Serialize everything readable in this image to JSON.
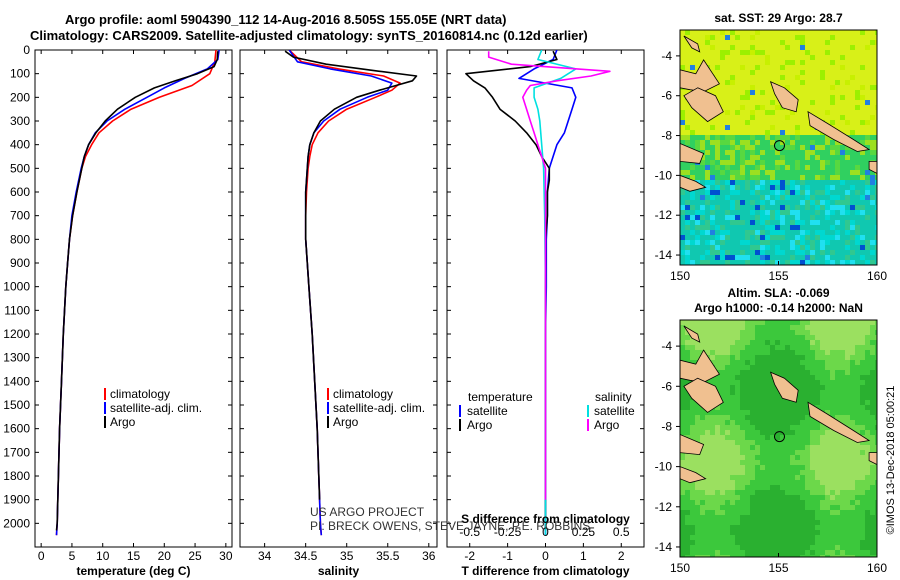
{
  "title": {
    "line1": "Argo profile: aoml 5904390_112 14-Aug-2016 8.505S 155.05E (NRT data)",
    "line2": "Climatology: CARS2009. Satellite-adjusted climatology: synTS_20160814.nc (0.12d earlier)"
  },
  "colors": {
    "climatology": "#ff0000",
    "satellite": "#0000ff",
    "argo": "#000000",
    "sat_salinity": "#00e0e0",
    "argo_salinity": "#ff00ff",
    "land": "#f0c090"
  },
  "chart_data": [
    {
      "type": "line",
      "id": "temperature",
      "xlabel": "temperature (deg C)",
      "xlim": [
        -1,
        31
      ],
      "ylim": [
        2100,
        0
      ],
      "xticks": [
        0,
        5,
        10,
        15,
        20,
        25,
        30
      ],
      "yticks": [
        0,
        100,
        200,
        300,
        400,
        500,
        600,
        700,
        800,
        900,
        1000,
        1100,
        1200,
        1300,
        1400,
        1500,
        1600,
        1700,
        1800,
        1900,
        2000
      ],
      "legend": [
        "climatology",
        "satellite-adj. clim.",
        "Argo"
      ],
      "series": [
        {
          "name": "climatology",
          "depth": [
            0,
            50,
            100,
            150,
            200,
            250,
            300,
            350,
            400,
            450,
            500,
            600,
            700,
            800,
            900,
            1000,
            1200,
            1400,
            1600,
            1800,
            2000,
            2050
          ],
          "value": [
            28.4,
            28.2,
            27.4,
            24.5,
            19.2,
            14.6,
            11.6,
            9.4,
            8.2,
            7.2,
            6.6,
            5.8,
            5.1,
            4.6,
            4.3,
            4.0,
            3.6,
            3.3,
            3.0,
            2.8,
            2.6,
            2.5
          ]
        },
        {
          "name": "satellite-adj. clim.",
          "depth": [
            0,
            40,
            80,
            120,
            160,
            200,
            250,
            300,
            350,
            400,
            450,
            500,
            600,
            700,
            800,
            900,
            1000,
            1200,
            1400,
            1600,
            1800,
            2000,
            2050
          ],
          "value": [
            28.9,
            28.7,
            27.0,
            23.3,
            20.0,
            17.2,
            13.6,
            10.7,
            8.8,
            7.7,
            7.0,
            6.5,
            5.7,
            5.0,
            4.6,
            4.3,
            4.0,
            3.6,
            3.3,
            3.0,
            2.8,
            2.6,
            2.5
          ]
        },
        {
          "name": "Argo",
          "depth": [
            5,
            40,
            70,
            100,
            130,
            160,
            200,
            250,
            300,
            350,
            400,
            450,
            500,
            600,
            700,
            800,
            900,
            1000,
            1200,
            1400,
            1600,
            1800,
            2000,
            2030
          ],
          "value": [
            28.7,
            28.6,
            28.1,
            25.4,
            21.8,
            18.4,
            15.3,
            12.4,
            10.4,
            8.9,
            7.7,
            7.0,
            6.6,
            5.8,
            5.1,
            4.6,
            4.3,
            4.0,
            3.6,
            3.3,
            3.0,
            2.8,
            2.6,
            2.5
          ]
        }
      ]
    },
    {
      "type": "line",
      "id": "salinity",
      "xlabel": "salinity",
      "xlim": [
        33.7,
        36.1
      ],
      "ylim": [
        2100,
        0
      ],
      "xticks": [
        34,
        34.5,
        35,
        35.5,
        36
      ],
      "legend": [
        "climatology",
        "satellite-adj. clim.",
        "Argo"
      ],
      "series": [
        {
          "name": "climatology",
          "depth": [
            0,
            50,
            80,
            110,
            140,
            170,
            200,
            250,
            300,
            350,
            400,
            450,
            500,
            600,
            700,
            800,
            900,
            1000,
            1200,
            1400,
            1600,
            1800,
            2000,
            2050
          ],
          "value": [
            34.3,
            34.45,
            34.9,
            35.45,
            35.65,
            35.55,
            35.35,
            35.0,
            34.78,
            34.65,
            34.58,
            34.55,
            34.53,
            34.51,
            34.5,
            34.5,
            34.52,
            34.54,
            34.58,
            34.61,
            34.64,
            34.66,
            34.68,
            34.69
          ]
        },
        {
          "name": "satellite-adj. clim.",
          "depth": [
            0,
            50,
            80,
            110,
            140,
            170,
            200,
            250,
            300,
            350,
            400,
            450,
            500,
            600,
            700,
            800,
            900,
            1000,
            1200,
            1400,
            1600,
            1800,
            2000,
            2050
          ],
          "value": [
            34.3,
            34.4,
            34.8,
            35.3,
            35.55,
            35.5,
            35.25,
            34.92,
            34.72,
            34.6,
            34.55,
            34.53,
            34.52,
            34.5,
            34.5,
            34.5,
            34.52,
            34.54,
            34.58,
            34.61,
            34.64,
            34.66,
            34.68,
            34.69
          ]
        },
        {
          "name": "Argo",
          "depth": [
            5,
            30,
            60,
            90,
            110,
            130,
            150,
            170,
            200,
            250,
            300,
            350,
            400,
            450,
            500,
            600,
            700,
            800,
            900,
            1000,
            1200,
            1400,
            1600,
            1800,
            1900
          ],
          "value": [
            34.25,
            34.35,
            34.75,
            35.4,
            35.85,
            35.8,
            35.6,
            35.4,
            35.12,
            34.85,
            34.68,
            34.6,
            34.55,
            34.53,
            34.52,
            34.5,
            34.5,
            34.5,
            34.52,
            34.54,
            34.58,
            34.61,
            34.64,
            34.66,
            34.67
          ]
        }
      ]
    },
    {
      "type": "line",
      "id": "difference",
      "xlabel": "T difference from climatology",
      "xlabel_top": "S difference from climatology",
      "xlim": [
        -2.6,
        2.6
      ],
      "ylim": [
        2100,
        0
      ],
      "xticks": [
        -2,
        -1,
        0,
        1,
        2
      ],
      "xticks_top_labels": [
        "-0.5",
        "-0.25",
        "0",
        "0.25",
        "0.5"
      ],
      "legend_left_title": "temperature",
      "legend_right_title": "salinity",
      "legend_left": [
        "satellite",
        "Argo"
      ],
      "legend_right": [
        "satellite",
        "Argo"
      ],
      "series": [
        {
          "name": "temperature satellite",
          "depth": [
            0,
            40,
            80,
            120,
            160,
            200,
            250,
            300,
            350,
            400,
            450,
            500,
            600,
            700,
            800,
            1000,
            1200,
            1500,
            2000,
            2050
          ],
          "value": [
            0.3,
            0.2,
            -0.3,
            -0.7,
            0.7,
            0.8,
            0.7,
            0.6,
            0.5,
            0.3,
            0.2,
            0.1,
            0.05,
            0.05,
            0.02,
            0.02,
            0.0,
            0.0,
            0.0,
            0.0
          ]
        },
        {
          "name": "temperature Argo",
          "depth": [
            5,
            40,
            70,
            100,
            130,
            160,
            200,
            250,
            300,
            350,
            400,
            450,
            500,
            550,
            600,
            700,
            800,
            1000,
            1200,
            1500,
            1800,
            2000,
            2030
          ],
          "value": [
            0.2,
            0.3,
            -0.4,
            -2.1,
            -1.9,
            -1.6,
            -1.4,
            -1.2,
            -0.8,
            -0.5,
            -0.25,
            -0.1,
            0.1,
            0.1,
            0.05,
            0.05,
            0.0,
            0.0,
            0.0,
            0.0,
            0.0,
            0.0,
            0.0
          ]
        },
        {
          "name": "salinity satellite",
          "depth": [
            0,
            40,
            80,
            120,
            160,
            200,
            250,
            300,
            400,
            500,
            700,
            1000,
            1500,
            2000,
            2050
          ],
          "value": [
            -0.1,
            -0.2,
            0.8,
            0.4,
            -0.3,
            -0.3,
            -0.2,
            -0.15,
            -0.1,
            -0.05,
            -0.02,
            0.0,
            0.0,
            0.0,
            0.0
          ]
        },
        {
          "name": "salinity Argo",
          "depth": [
            5,
            30,
            60,
            90,
            110,
            130,
            150,
            170,
            200,
            250,
            300,
            350,
            400,
            450,
            500,
            600,
            800,
            1000,
            1500,
            1900
          ],
          "value": [
            -1.5,
            -1.5,
            -0.9,
            1.7,
            1.2,
            0.3,
            -0.4,
            -0.5,
            -0.6,
            -0.5,
            -0.4,
            -0.3,
            -0.2,
            -0.1,
            0.0,
            0.0,
            0.0,
            0.0,
            0.0,
            0.0
          ]
        }
      ]
    },
    {
      "type": "heatmap",
      "id": "sst_map",
      "title": "sat. SST: 29 Argo: 28.7",
      "xlim": [
        150,
        160
      ],
      "ylim": [
        -14.5,
        -2.7
      ],
      "xticks": [
        150,
        155,
        160
      ],
      "yticks": [
        -4,
        -6,
        -8,
        -10,
        -12,
        -14
      ],
      "marker": [
        155.05,
        -8.505
      ]
    },
    {
      "type": "heatmap",
      "id": "sla_map",
      "title": "Altim. SLA: -0.069",
      "subtitle": "Argo h1000: -0.14 h2000: NaN",
      "xlim": [
        150,
        160
      ],
      "ylim": [
        -14.5,
        -2.7
      ],
      "xticks": [
        150,
        155,
        160
      ],
      "yticks": [
        -4,
        -6,
        -8,
        -10,
        -12,
        -14
      ],
      "marker": [
        155.05,
        -8.505
      ]
    }
  ],
  "credits": {
    "line1": "US ARGO PROJECT",
    "line2": "PI: BRECK OWENS, STEVE JAYNE, P.E. ROBBINS"
  },
  "watermark": "©IMOS 13-Dec-2018 05:00:21"
}
